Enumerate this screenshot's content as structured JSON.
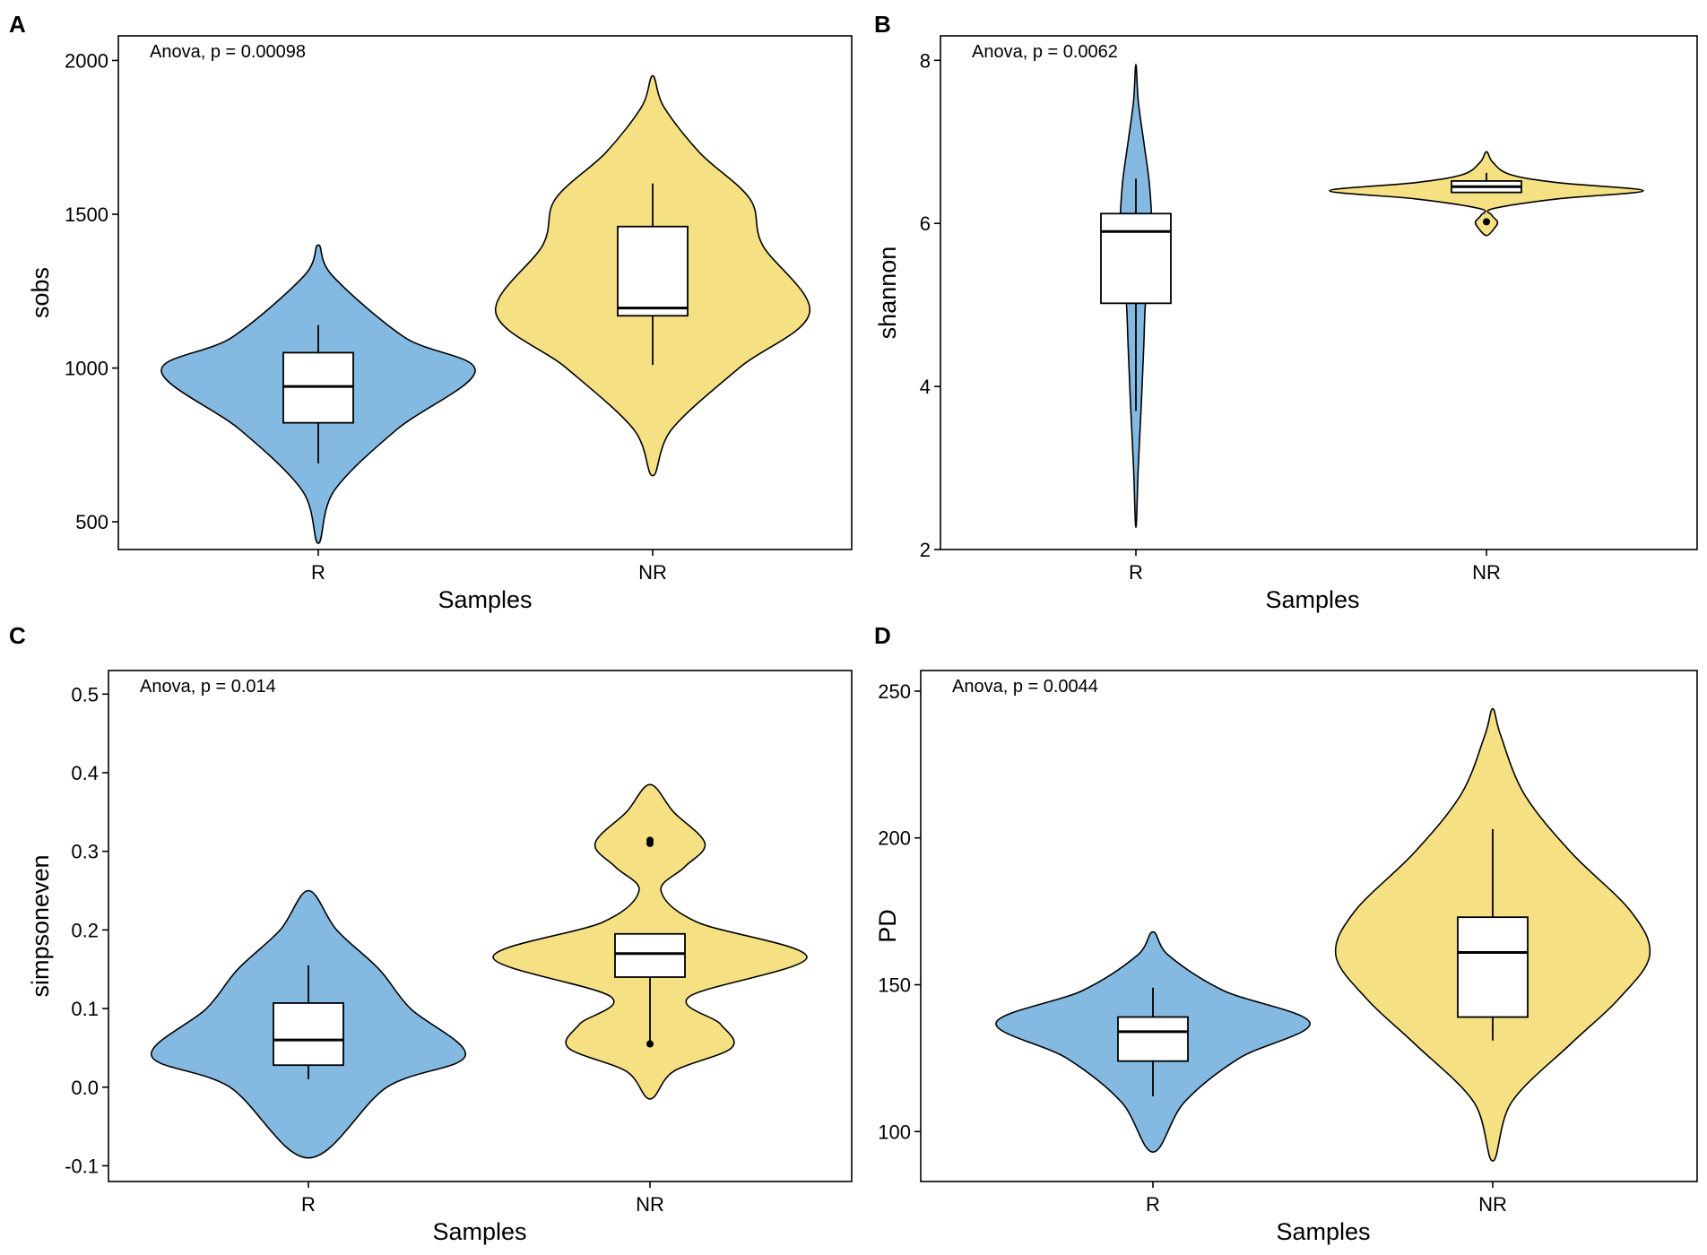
{
  "colors": {
    "R": "#84b9e1",
    "NR": "#f5e083"
  },
  "chart_data": [
    {
      "id": "A",
      "type": "violin",
      "panel_label": "A",
      "annotation": "Anova, p = 0.00098",
      "ylabel": "sobs",
      "xlabel": "Samples",
      "ylim": [
        410,
        2080
      ],
      "yticks": [
        500,
        1000,
        1500,
        2000
      ],
      "ytick_labels": [
        "500",
        "1000",
        "1500",
        "2000"
      ],
      "categories": [
        "R",
        "NR"
      ],
      "groups": [
        {
          "name": "R",
          "violin": {
            "y": [
              430,
              600,
              800,
              990,
              1100,
              1300,
              1400
            ],
            "w": [
              0,
              0.1,
              0.5,
              1.0,
              0.55,
              0.09,
              0
            ]
          },
          "box": {
            "whisker_low": 690,
            "q1": 822,
            "median": 940,
            "q3": 1050,
            "whisker_high": 1140
          },
          "outliers": []
        },
        {
          "name": "NR",
          "violin": {
            "y": [
              650,
              800,
              1000,
              1180,
              1400,
              1550,
              1700,
              1850,
              1950
            ],
            "w": [
              0,
              0.12,
              0.55,
              1.0,
              0.7,
              0.62,
              0.3,
              0.07,
              0
            ]
          },
          "box": {
            "whisker_low": 1010,
            "q1": 1170,
            "median": 1195,
            "q3": 1460,
            "whisker_high": 1600
          },
          "outliers": []
        }
      ]
    },
    {
      "id": "B",
      "type": "violin",
      "panel_label": "B",
      "annotation": "Anova, p = 0.0062",
      "ylabel": "shannon",
      "xlabel": "Samples",
      "ylim": [
        2,
        8.3
      ],
      "yticks": [
        2,
        4,
        6,
        8
      ],
      "ytick_labels": [
        "2",
        "4",
        "6",
        "8"
      ],
      "categories": [
        "R",
        "NR"
      ],
      "groups": [
        {
          "name": "R",
          "violin": {
            "y": [
              2.27,
              3.0,
              3.8,
              4.5,
              5.0,
              5.5,
              6.0,
              6.5,
              7.0,
              7.5,
              7.95
            ],
            "w": [
              0,
              0.015,
              0.035,
              0.05,
              0.06,
              0.085,
              0.1,
              0.085,
              0.05,
              0.015,
              0
            ]
          },
          "box": {
            "whisker_low": 3.7,
            "q1": 5.02,
            "median": 5.9,
            "q3": 6.12,
            "whisker_high": 6.55
          },
          "outliers": []
        },
        {
          "name": "NR",
          "violin": {
            "y": [
              5.85,
              5.95,
              6.02,
              6.1,
              6.18,
              6.3,
              6.4,
              6.5,
              6.6,
              6.75,
              6.88
            ],
            "w": [
              0,
              0.055,
              0.07,
              0.035,
              0.04,
              0.45,
              1.0,
              0.45,
              0.15,
              0.04,
              0
            ]
          },
          "box": {
            "whisker_low": 6.38,
            "q1": 6.38,
            "median": 6.45,
            "q3": 6.52,
            "whisker_high": 6.62
          },
          "outliers": [
            6.02
          ]
        }
      ]
    },
    {
      "id": "C",
      "type": "violin",
      "panel_label": "C",
      "annotation": "Anova, p = 0.014",
      "ylabel": "simpsoneven",
      "xlabel": "Samples",
      "ylim": [
        -0.12,
        0.53
      ],
      "yticks": [
        -0.1,
        0.0,
        0.1,
        0.2,
        0.3,
        0.4,
        0.5
      ],
      "ytick_labels": [
        "-0.1",
        "0.0",
        "0.1",
        "0.2",
        "0.3",
        "0.4",
        "0.5"
      ],
      "categories": [
        "R",
        "NR"
      ],
      "groups": [
        {
          "name": "R",
          "violin": {
            "y": [
              -0.09,
              0.0,
              0.04,
              0.1,
              0.15,
              0.2,
              0.25
            ],
            "w": [
              0,
              0.5,
              1.0,
              0.65,
              0.45,
              0.18,
              0
            ]
          },
          "box": {
            "whisker_low": 0.01,
            "q1": 0.028,
            "median": 0.06,
            "q3": 0.107,
            "whisker_high": 0.155
          },
          "outliers": []
        },
        {
          "name": "NR",
          "violin": {
            "y": [
              -0.015,
              0.02,
              0.05,
              0.08,
              0.115,
              0.165,
              0.21,
              0.25,
              0.28,
              0.31,
              0.35,
              0.385
            ],
            "w": [
              0,
              0.15,
              0.52,
              0.45,
              0.25,
              1.0,
              0.3,
              0.07,
              0.22,
              0.35,
              0.15,
              0
            ]
          },
          "box": {
            "whisker_low": 0.058,
            "q1": 0.14,
            "median": 0.17,
            "q3": 0.195,
            "whisker_high": 0.195
          },
          "outliers": [
            0.055,
            0.31,
            0.314
          ]
        }
      ]
    },
    {
      "id": "D",
      "type": "violin",
      "panel_label": "D",
      "annotation": "Anova, p = 0.0044",
      "ylabel": "PD",
      "xlabel": "Samples",
      "ylim": [
        83,
        257
      ],
      "yticks": [
        100,
        150,
        200,
        250
      ],
      "ytick_labels": [
        "100",
        "150",
        "200",
        "250"
      ],
      "categories": [
        "R",
        "NR"
      ],
      "groups": [
        {
          "name": "R",
          "violin": {
            "y": [
              93,
              110,
              125,
              137,
              148,
              160,
              168
            ],
            "w": [
              0,
              0.2,
              0.55,
              1.0,
              0.45,
              0.1,
              0
            ]
          },
          "box": {
            "whisker_low": 112,
            "q1": 124,
            "median": 134,
            "q3": 139,
            "whisker_high": 149
          },
          "outliers": []
        },
        {
          "name": "NR",
          "violin": {
            "y": [
              90,
              110,
              130,
              145,
              160,
              175,
              195,
              215,
              235,
              244
            ],
            "w": [
              0,
              0.12,
              0.5,
              0.8,
              1.0,
              0.88,
              0.5,
              0.2,
              0.05,
              0
            ]
          },
          "box": {
            "whisker_low": 131,
            "q1": 139,
            "median": 161,
            "q3": 173,
            "whisker_high": 203
          },
          "outliers": []
        }
      ]
    }
  ]
}
